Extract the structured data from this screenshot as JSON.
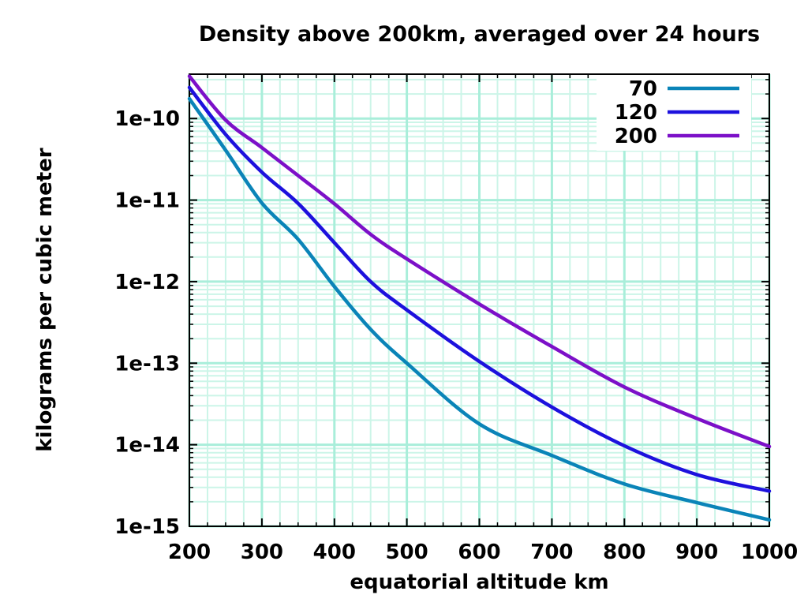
{
  "title": "Density above 200km, averaged over 24 hours",
  "chart_data": {
    "type": "line",
    "title": "Density above 200km, averaged over 24 hours",
    "xlabel": "equatorial altitude km",
    "ylabel": "kilograms per cubic meter",
    "x_scale": "linear",
    "y_scale": "log",
    "xlim": [
      200,
      1000
    ],
    "ylim": [
      1e-15,
      3.5e-10
    ],
    "x_ticks": [
      200,
      300,
      400,
      500,
      600,
      700,
      800,
      900,
      1000
    ],
    "x_minor_step": 25,
    "y_tick_labels": [
      "1e-10",
      "1e-11",
      "1e-12",
      "1e-13",
      "1e-14",
      "1e-15"
    ],
    "grid": true,
    "legend_position": "top-right-inside-opaque",
    "x": [
      200,
      250,
      300,
      350,
      400,
      450,
      500,
      600,
      700,
      800,
      900,
      1000
    ],
    "series": [
      {
        "name": "70",
        "color": "#0a84b8",
        "values": [
          1.75e-10,
          4.1e-11,
          9.2e-12,
          3.3e-12,
          8.7e-13,
          2.6e-13,
          1e-13,
          1.8e-14,
          7.4e-15,
          3.3e-15,
          1.95e-15,
          1.2e-15
        ]
      },
      {
        "name": "120",
        "color": "#1d11dd",
        "values": [
          2.4e-10,
          6.4e-11,
          2.2e-11,
          9.1e-12,
          3e-12,
          1e-12,
          4.5e-13,
          1.05e-13,
          2.9e-14,
          9.7e-15,
          4.3e-15,
          2.7e-15
        ]
      },
      {
        "name": "200",
        "color": "#7c10c8",
        "values": [
          3.3e-10,
          9.6e-11,
          4.4e-11,
          2e-11,
          9e-12,
          3.8e-12,
          1.9e-12,
          5.3e-13,
          1.6e-13,
          5.1e-14,
          2.1e-14,
          9.5e-15
        ]
      }
    ],
    "colors": {
      "grid_major": "#a9eeda",
      "grid_minor": "#ccf5e8",
      "frame": "#000000",
      "background": "#ffffff"
    }
  }
}
